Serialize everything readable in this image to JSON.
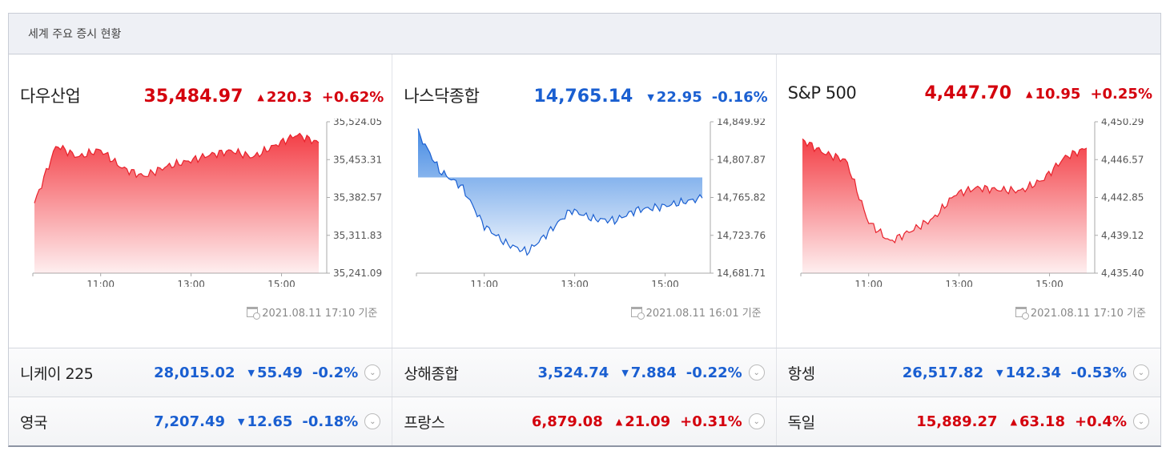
{
  "header": {
    "title": "세계 주요 증시 현황"
  },
  "colors": {
    "up": "#d4000d",
    "down": "#1a5fd1",
    "up_fill": "#f3353d",
    "down_fill": "#2f7de0"
  },
  "panels": [
    {
      "name": "다우산업",
      "value": "35,484.97",
      "direction": "up",
      "arrow": "▲",
      "change": "220.3",
      "rate": "+0.62%",
      "timestamp": "2021.08.11 17:10 기준",
      "yticks": [
        "35,524.05",
        "35,453.31",
        "35,382.57",
        "35,311.83",
        "35,241.09"
      ],
      "xticks": [
        "11:00",
        "13:00",
        "15:00"
      ],
      "chart_data": {
        "type": "area",
        "ylim": [
          35241.09,
          35524.05
        ],
        "x": [
          "09:30",
          "10:00",
          "10:30",
          "11:00",
          "11:30",
          "12:00",
          "12:30",
          "13:00",
          "13:30",
          "14:00",
          "14:30",
          "15:00",
          "15:30",
          "16:00"
        ],
        "values": [
          35372,
          35480,
          35458,
          35472,
          35438,
          35422,
          35440,
          35450,
          35462,
          35470,
          35458,
          35480,
          35500,
          35484.97
        ],
        "fill": "up"
      }
    },
    {
      "name": "나스닥종합",
      "value": "14,765.14",
      "direction": "down",
      "arrow": "▼",
      "change": "22.95",
      "rate": "-0.16%",
      "timestamp": "2021.08.11 16:01 기준",
      "yticks": [
        "14,849.92",
        "14,807.87",
        "14,765.82",
        "14,723.76",
        "14,681.71"
      ],
      "xticks": [
        "11:00",
        "13:00",
        "15:00"
      ],
      "chart_data": {
        "type": "area",
        "ylim": [
          14681.71,
          14849.92
        ],
        "baseline": 14788.09,
        "x": [
          "09:30",
          "10:00",
          "10:30",
          "11:00",
          "11:30",
          "12:00",
          "12:30",
          "13:00",
          "13:30",
          "14:00",
          "14:30",
          "15:00",
          "15:30",
          "16:00"
        ],
        "values": [
          14838,
          14795,
          14778,
          14735,
          14715,
          14705,
          14728,
          14752,
          14742,
          14740,
          14752,
          14755,
          14760,
          14765.14
        ],
        "fill": "down"
      }
    },
    {
      "name": "S&P 500",
      "value": "4,447.70",
      "direction": "up",
      "arrow": "▲",
      "change": "10.95",
      "rate": "+0.25%",
      "timestamp": "2021.08.11 17:10 기준",
      "yticks": [
        "4,450.29",
        "4,446.57",
        "4,442.85",
        "4,439.12",
        "4,435.40"
      ],
      "xticks": [
        "11:00",
        "13:00",
        "15:00"
      ],
      "chart_data": {
        "type": "area",
        "ylim": [
          4435.4,
          4450.29
        ],
        "x": [
          "09:30",
          "10:00",
          "10:30",
          "11:00",
          "11:30",
          "12:00",
          "12:30",
          "13:00",
          "13:30",
          "14:00",
          "14:30",
          "15:00",
          "15:30",
          "16:00"
        ],
        "values": [
          4448.5,
          4447.2,
          4446.5,
          4440.5,
          4438.5,
          4439.6,
          4440.8,
          4443.2,
          4443.8,
          4443.6,
          4443.5,
          4444.6,
          4446.8,
          4447.7
        ],
        "fill": "up"
      }
    }
  ],
  "rows": [
    [
      {
        "name": "니케이 225",
        "value": "28,015.02",
        "direction": "down",
        "arrow": "▼",
        "change": "55.49",
        "rate": "-0.2%"
      },
      {
        "name": "상해종합",
        "value": "3,524.74",
        "direction": "down",
        "arrow": "▼",
        "change": "7.884",
        "rate": "-0.22%"
      },
      {
        "name": "항셍",
        "value": "26,517.82",
        "direction": "down",
        "arrow": "▼",
        "change": "142.34",
        "rate": "-0.53%"
      }
    ],
    [
      {
        "name": "영국",
        "value": "7,207.49",
        "direction": "down",
        "arrow": "▼",
        "change": "12.65",
        "rate": "-0.18%"
      },
      {
        "name": "프랑스",
        "value": "6,879.08",
        "direction": "up",
        "arrow": "▲",
        "change": "21.09",
        "rate": "+0.31%"
      },
      {
        "name": "독일",
        "value": "15,889.27",
        "direction": "up",
        "arrow": "▲",
        "change": "63.18",
        "rate": "+0.4%"
      }
    ]
  ],
  "icons": {
    "calendar": "calendar-clock-icon",
    "expand": "chevron-down-icon"
  }
}
